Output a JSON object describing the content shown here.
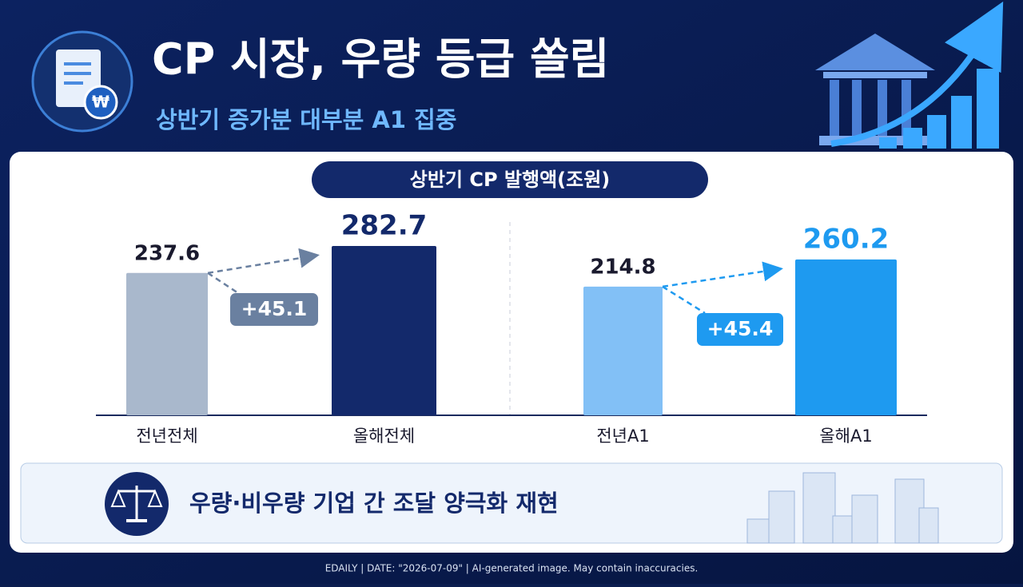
{
  "header": {
    "title": "CP 시장, 우량 등급 쏠림",
    "subtitle": "상반기 증가분 대부분 A1 집중"
  },
  "chart_data": {
    "type": "bar",
    "title": "상반기 CP 발행액(조원)",
    "categories": [
      "전년전체",
      "올해전체",
      "전년A1",
      "올해A1"
    ],
    "values": [
      237.6,
      282.7,
      214.8,
      260.2
    ],
    "colors": [
      "#a9b8cc",
      "#13296b",
      "#82c0f6",
      "#1e9af0"
    ],
    "annotations": [
      "+45.1",
      "+45.4"
    ]
  },
  "banner": "우량·비우량 기업 간 조달 양극화 재현",
  "footer": "EDAILY  |  DATE: \"2026-07-09\"  |  AI-generated image. May contain inaccuracies."
}
